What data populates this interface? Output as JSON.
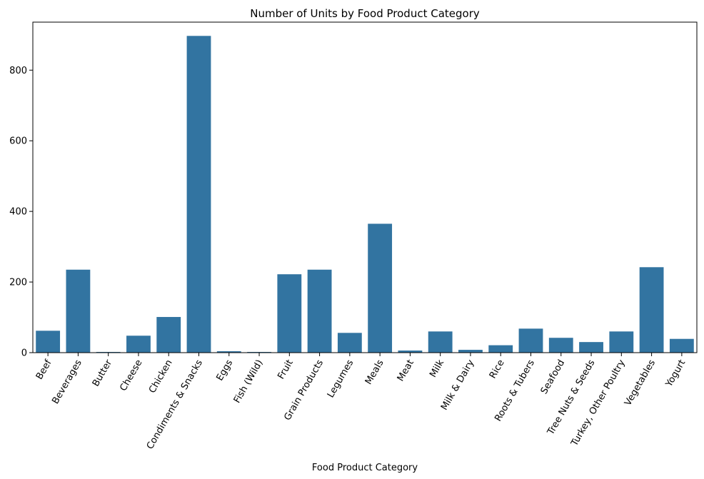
{
  "chart_data": {
    "type": "bar",
    "title": "Number of Units by Food Product Category",
    "xlabel": "Food Product Category",
    "ylabel": "",
    "ylim": [
      0,
      936
    ],
    "yticks": [
      0,
      200,
      400,
      600,
      800
    ],
    "grid": false,
    "bar_color": "#3274a1",
    "categories": [
      "Beef",
      "Beverages",
      "Butter",
      "Cheese",
      "Chicken",
      "Condiments & Snacks",
      "Eggs",
      "Fish (Wild)",
      "Fruit",
      "Grain Products",
      "Legumes",
      "Meals",
      "Meat",
      "Milk",
      "Milk & Dairy",
      "Rice",
      "Roots & Tubers",
      "Seafood",
      "Tree Nuts & Seeds",
      "Turkey, Other Poultry",
      "Vegetables",
      "Yogurt"
    ],
    "values": [
      62,
      235,
      2,
      48,
      101,
      897,
      4,
      2,
      222,
      235,
      56,
      365,
      6,
      60,
      8,
      21,
      68,
      42,
      30,
      60,
      242,
      39
    ]
  }
}
